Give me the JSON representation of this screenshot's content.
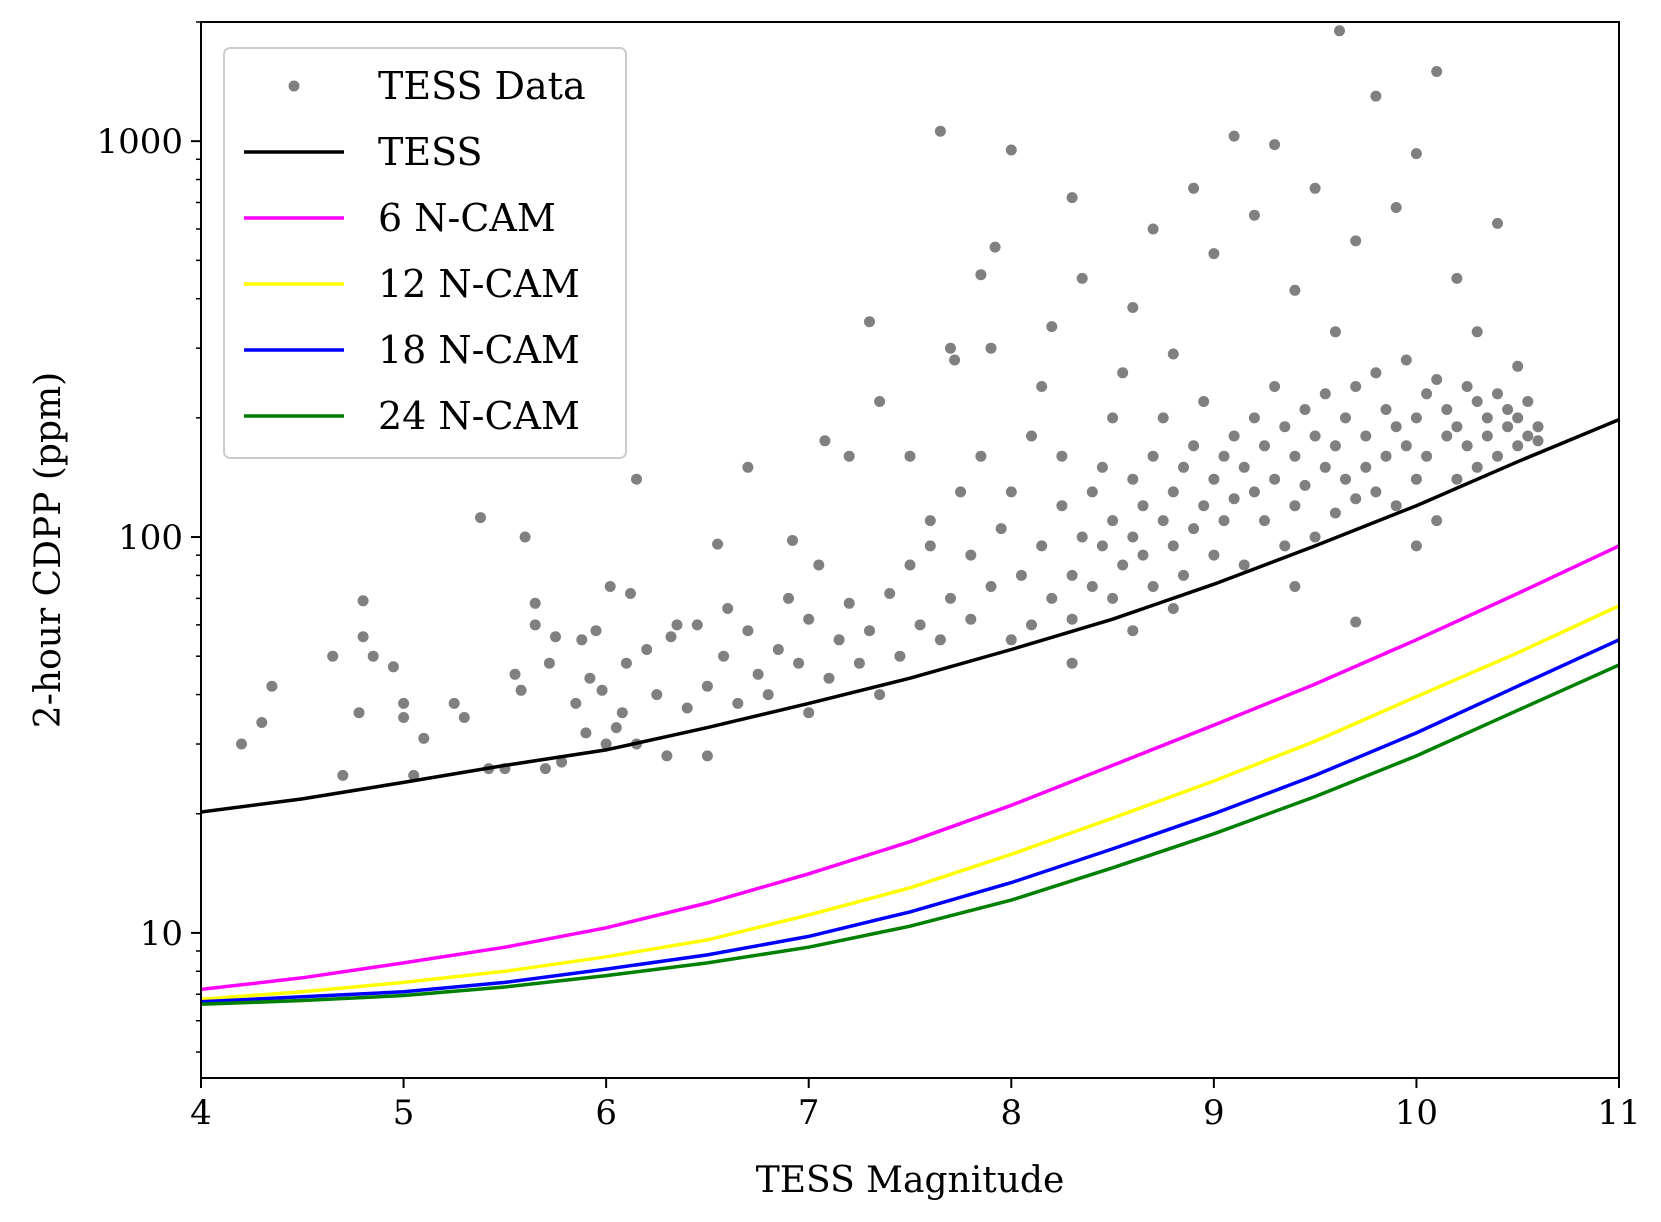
{
  "chart_data": {
    "type": "scatter",
    "xlabel": "TESS Magnitude",
    "ylabel": "2-hour CDPP (ppm)",
    "xlim": [
      4,
      11
    ],
    "ylim": [
      4.3,
      2000
    ],
    "yscale": "log",
    "xticks": [
      4,
      5,
      6,
      7,
      8,
      9,
      10,
      11
    ],
    "yticks": [
      10,
      100,
      1000
    ],
    "legend_position": "top-left",
    "grid": false,
    "series": [
      {
        "name": "TESS Data",
        "kind": "scatter",
        "color": "#808080",
        "note_points": "representative sample of the point cloud",
        "points": [
          [
            4.2,
            30
          ],
          [
            4.3,
            34
          ],
          [
            4.35,
            42
          ],
          [
            4.65,
            50
          ],
          [
            4.7,
            25
          ],
          [
            4.78,
            36
          ],
          [
            4.8,
            56
          ],
          [
            4.8,
            69
          ],
          [
            4.85,
            50
          ],
          [
            4.95,
            47
          ],
          [
            5.0,
            35
          ],
          [
            5.0,
            38
          ],
          [
            5.05,
            25
          ],
          [
            5.1,
            31
          ],
          [
            5.25,
            38
          ],
          [
            5.3,
            35
          ],
          [
            5.38,
            112
          ],
          [
            5.42,
            26
          ],
          [
            5.5,
            26
          ],
          [
            5.55,
            45
          ],
          [
            5.58,
            41
          ],
          [
            5.6,
            100
          ],
          [
            5.65,
            60
          ],
          [
            5.65,
            68
          ],
          [
            5.7,
            26
          ],
          [
            5.72,
            48
          ],
          [
            5.75,
            56
          ],
          [
            5.78,
            27
          ],
          [
            5.85,
            38
          ],
          [
            5.88,
            55
          ],
          [
            5.9,
            32
          ],
          [
            5.92,
            44
          ],
          [
            5.95,
            58
          ],
          [
            5.98,
            41
          ],
          [
            6.0,
            30
          ],
          [
            6.02,
            75
          ],
          [
            6.05,
            33
          ],
          [
            6.08,
            36
          ],
          [
            6.1,
            48
          ],
          [
            6.12,
            72
          ],
          [
            6.15,
            140
          ],
          [
            6.15,
            30
          ],
          [
            6.2,
            52
          ],
          [
            6.25,
            40
          ],
          [
            6.3,
            28
          ],
          [
            6.32,
            56
          ],
          [
            6.35,
            60
          ],
          [
            6.4,
            37
          ],
          [
            6.45,
            60
          ],
          [
            6.5,
            42
          ],
          [
            6.5,
            28
          ],
          [
            6.55,
            96
          ],
          [
            6.58,
            50
          ],
          [
            6.6,
            66
          ],
          [
            6.65,
            38
          ],
          [
            6.7,
            150
          ],
          [
            6.7,
            58
          ],
          [
            6.75,
            45
          ],
          [
            6.8,
            40
          ],
          [
            6.85,
            52
          ],
          [
            6.9,
            70
          ],
          [
            6.92,
            98
          ],
          [
            6.95,
            48
          ],
          [
            7.0,
            36
          ],
          [
            7.0,
            62
          ],
          [
            7.05,
            85
          ],
          [
            7.08,
            175
          ],
          [
            7.1,
            44
          ],
          [
            7.15,
            55
          ],
          [
            7.2,
            160
          ],
          [
            7.2,
            68
          ],
          [
            7.25,
            48
          ],
          [
            7.3,
            58
          ],
          [
            7.3,
            350
          ],
          [
            7.35,
            40
          ],
          [
            7.35,
            220
          ],
          [
            7.4,
            72
          ],
          [
            7.45,
            50
          ],
          [
            7.5,
            85
          ],
          [
            7.5,
            160
          ],
          [
            7.55,
            60
          ],
          [
            7.6,
            95
          ],
          [
            7.6,
            110
          ],
          [
            7.65,
            55
          ],
          [
            7.65,
            1060
          ],
          [
            7.7,
            70
          ],
          [
            7.7,
            300
          ],
          [
            7.72,
            280
          ],
          [
            7.75,
            130
          ],
          [
            7.8,
            62
          ],
          [
            7.8,
            90
          ],
          [
            7.85,
            160
          ],
          [
            7.85,
            460
          ],
          [
            7.9,
            75
          ],
          [
            7.9,
            300
          ],
          [
            7.92,
            540
          ],
          [
            7.95,
            105
          ],
          [
            8.0,
            55
          ],
          [
            8.0,
            130
          ],
          [
            8.0,
            950
          ],
          [
            8.05,
            80
          ],
          [
            8.1,
            60
          ],
          [
            8.1,
            180
          ],
          [
            8.15,
            95
          ],
          [
            8.15,
            240
          ],
          [
            8.2,
            70
          ],
          [
            8.2,
            340
          ],
          [
            8.25,
            120
          ],
          [
            8.25,
            160
          ],
          [
            8.3,
            62
          ],
          [
            8.3,
            80
          ],
          [
            8.3,
            720
          ],
          [
            8.35,
            100
          ],
          [
            8.35,
            450
          ],
          [
            8.4,
            130
          ],
          [
            8.4,
            75
          ],
          [
            8.45,
            150
          ],
          [
            8.45,
            95
          ],
          [
            8.5,
            110
          ],
          [
            8.5,
            70
          ],
          [
            8.5,
            200
          ],
          [
            8.55,
            260
          ],
          [
            8.55,
            85
          ],
          [
            8.6,
            140
          ],
          [
            8.6,
            100
          ],
          [
            8.6,
            380
          ],
          [
            8.65,
            120
          ],
          [
            8.65,
            90
          ],
          [
            8.7,
            160
          ],
          [
            8.7,
            75
          ],
          [
            8.7,
            600
          ],
          [
            8.75,
            110
          ],
          [
            8.75,
            200
          ],
          [
            8.8,
            130
          ],
          [
            8.8,
            95
          ],
          [
            8.8,
            290
          ],
          [
            8.85,
            150
          ],
          [
            8.85,
            80
          ],
          [
            8.9,
            170
          ],
          [
            8.9,
            105
          ],
          [
            8.9,
            760
          ],
          [
            8.95,
            120
          ],
          [
            8.95,
            220
          ],
          [
            9.0,
            140
          ],
          [
            9.0,
            90
          ],
          [
            9.0,
            520
          ],
          [
            9.05,
            160
          ],
          [
            9.05,
            110
          ],
          [
            9.1,
            180
          ],
          [
            9.1,
            125
          ],
          [
            9.1,
            1030
          ],
          [
            9.15,
            150
          ],
          [
            9.15,
            85
          ],
          [
            9.2,
            200
          ],
          [
            9.2,
            130
          ],
          [
            9.2,
            650
          ],
          [
            9.25,
            170
          ],
          [
            9.25,
            110
          ],
          [
            9.3,
            240
          ],
          [
            9.3,
            140
          ],
          [
            9.3,
            980
          ],
          [
            9.35,
            190
          ],
          [
            9.35,
            95
          ],
          [
            9.4,
            160
          ],
          [
            9.4,
            120
          ],
          [
            9.4,
            420
          ],
          [
            9.45,
            210
          ],
          [
            9.45,
            135
          ],
          [
            9.5,
            180
          ],
          [
            9.5,
            100
          ],
          [
            9.5,
            760
          ],
          [
            9.55,
            230
          ],
          [
            9.55,
            150
          ],
          [
            9.6,
            170
          ],
          [
            9.6,
            115
          ],
          [
            9.6,
            330
          ],
          [
            9.62,
            1900
          ],
          [
            9.65,
            200
          ],
          [
            9.65,
            140
          ],
          [
            9.7,
            240
          ],
          [
            9.7,
            125
          ],
          [
            9.7,
            560
          ],
          [
            9.75,
            180
          ],
          [
            9.75,
            150
          ],
          [
            9.8,
            260
          ],
          [
            9.8,
            130
          ],
          [
            9.8,
            1300
          ],
          [
            9.85,
            210
          ],
          [
            9.85,
            160
          ],
          [
            9.9,
            190
          ],
          [
            9.9,
            120
          ],
          [
            9.9,
            680
          ],
          [
            9.95,
            280
          ],
          [
            9.95,
            170
          ],
          [
            10.0,
            200
          ],
          [
            10.0,
            140
          ],
          [
            10.0,
            930
          ],
          [
            10.05,
            230
          ],
          [
            10.05,
            160
          ],
          [
            10.1,
            250
          ],
          [
            10.1,
            110
          ],
          [
            10.1,
            1500
          ],
          [
            10.15,
            210
          ],
          [
            10.15,
            180
          ],
          [
            10.2,
            190
          ],
          [
            10.2,
            140
          ],
          [
            10.2,
            450
          ],
          [
            10.25,
            240
          ],
          [
            10.25,
            170
          ],
          [
            10.3,
            220
          ],
          [
            10.3,
            150
          ],
          [
            10.3,
            330
          ],
          [
            10.35,
            200
          ],
          [
            10.35,
            180
          ],
          [
            10.4,
            230
          ],
          [
            10.4,
            160
          ],
          [
            10.4,
            620
          ],
          [
            10.45,
            210
          ],
          [
            10.45,
            190
          ],
          [
            10.5,
            200
          ],
          [
            10.5,
            170
          ],
          [
            10.5,
            270
          ],
          [
            10.55,
            180
          ],
          [
            10.55,
            220
          ],
          [
            10.6,
            190
          ],
          [
            10.6,
            175
          ],
          [
            9.7,
            61
          ],
          [
            10.0,
            95
          ],
          [
            9.4,
            75
          ],
          [
            8.3,
            48
          ],
          [
            8.6,
            58
          ],
          [
            8.8,
            66
          ]
        ]
      },
      {
        "name": "TESS",
        "kind": "line",
        "color": "#000000",
        "x": [
          4,
          4.5,
          5,
          5.5,
          6,
          6.5,
          7,
          7.5,
          8,
          8.5,
          9,
          9.5,
          10,
          10.5,
          11
        ],
        "y": [
          20.2,
          21.8,
          24,
          26.5,
          29,
          33,
          38,
          44,
          52,
          62,
          76,
          95,
          120,
          155,
          198
        ]
      },
      {
        "name": "6 N-CAM",
        "kind": "line",
        "color": "#ff00ff",
        "x": [
          4,
          4.5,
          5,
          5.5,
          6,
          6.5,
          7,
          7.5,
          8,
          8.5,
          9,
          9.5,
          10,
          10.5,
          11
        ],
        "y": [
          7.2,
          7.7,
          8.4,
          9.2,
          10.3,
          11.9,
          14.1,
          17.0,
          21,
          26.5,
          33.5,
          42.5,
          55,
          72,
          95
        ]
      },
      {
        "name": "12 N-CAM",
        "kind": "line",
        "color": "#ffff00",
        "x": [
          4,
          4.5,
          5,
          5.5,
          6,
          6.5,
          7,
          7.5,
          8,
          8.5,
          9,
          9.5,
          10,
          10.5,
          11
        ],
        "y": [
          6.8,
          7.1,
          7.5,
          8.0,
          8.7,
          9.6,
          11.1,
          13.0,
          15.8,
          19.5,
          24.2,
          30.5,
          39.5,
          51,
          67
        ]
      },
      {
        "name": "18 N-CAM",
        "kind": "line",
        "color": "#0000ff",
        "x": [
          4,
          4.5,
          5,
          5.5,
          6,
          6.5,
          7,
          7.5,
          8,
          8.5,
          9,
          9.5,
          10,
          10.5,
          11
        ],
        "y": [
          6.7,
          6.9,
          7.1,
          7.5,
          8.1,
          8.8,
          9.8,
          11.3,
          13.4,
          16.3,
          20.0,
          25.0,
          32,
          42,
          55
        ]
      },
      {
        "name": "24 N-CAM",
        "kind": "line",
        "color": "#008000",
        "x": [
          4,
          4.5,
          5,
          5.5,
          6,
          6.5,
          7,
          7.5,
          8,
          8.5,
          9,
          9.5,
          10,
          10.5,
          11
        ],
        "y": [
          6.6,
          6.75,
          6.95,
          7.3,
          7.8,
          8.4,
          9.2,
          10.4,
          12.1,
          14.6,
          17.8,
          22.1,
          28,
          36.5,
          47.5
        ]
      }
    ]
  }
}
